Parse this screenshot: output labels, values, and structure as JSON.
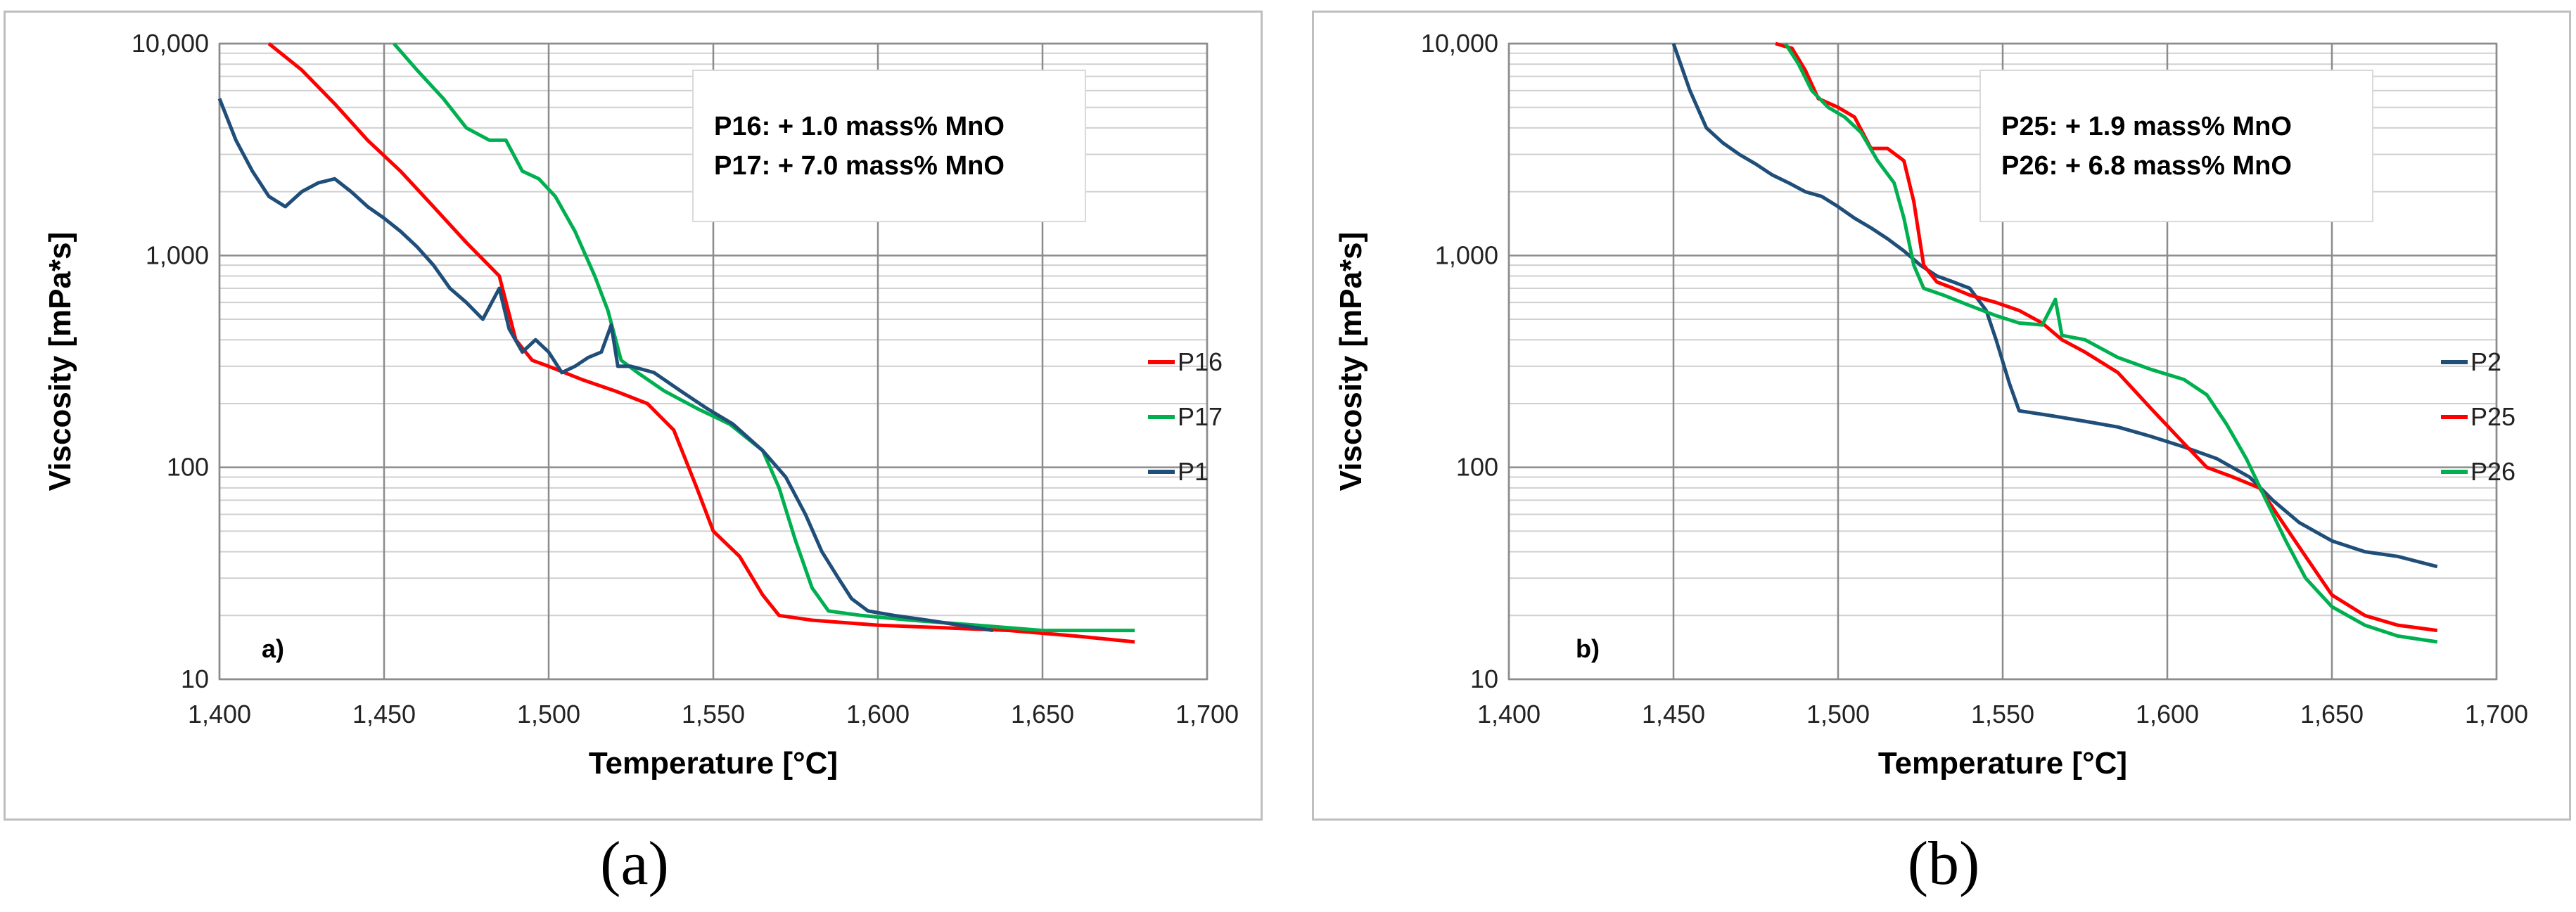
{
  "chart_data": [
    {
      "type": "line",
      "panel_label": "a)",
      "caption": "(a)",
      "xlabel": "Temperature [°C]",
      "ylabel": "Viscosity [mPa*s]",
      "xlim": [
        1400,
        1700
      ],
      "ylim": [
        10,
        10000
      ],
      "yscale": "log",
      "grid": true,
      "x_ticks": [
        1400,
        1450,
        1500,
        1550,
        1600,
        1650,
        1700
      ],
      "x_tick_labels": [
        "1,400",
        "1,450",
        "1,500",
        "1,550",
        "1,600",
        "1,650",
        "1,700"
      ],
      "y_ticks": [
        10,
        100,
        1000,
        10000
      ],
      "y_tick_labels": [
        "10",
        "100",
        "1,000",
        "10,000"
      ],
      "annotation": [
        "P16: + 1.0 mass% MnO",
        "P17: + 7.0 mass% MnO"
      ],
      "legend_position": "right",
      "series": [
        {
          "name": "P16",
          "color": "#ff0000",
          "points": [
            [
              1415,
              10000
            ],
            [
              1425,
              7500
            ],
            [
              1435,
              5200
            ],
            [
              1445,
              3500
            ],
            [
              1455,
              2500
            ],
            [
              1465,
              1700
            ],
            [
              1475,
              1150
            ],
            [
              1485,
              800
            ],
            [
              1490,
              400
            ],
            [
              1495,
              320
            ],
            [
              1500,
              300
            ],
            [
              1510,
              260
            ],
            [
              1520,
              230
            ],
            [
              1530,
              200
            ],
            [
              1538,
              150
            ],
            [
              1545,
              80
            ],
            [
              1550,
              50
            ],
            [
              1558,
              38
            ],
            [
              1565,
              25
            ],
            [
              1570,
              20
            ],
            [
              1580,
              19
            ],
            [
              1600,
              18
            ],
            [
              1620,
              17.5
            ],
            [
              1640,
              17
            ],
            [
              1660,
              16
            ],
            [
              1678,
              15
            ]
          ]
        },
        {
          "name": "P17",
          "color": "#00b050",
          "points": [
            [
              1453,
              10000
            ],
            [
              1460,
              7500
            ],
            [
              1468,
              5500
            ],
            [
              1475,
              4000
            ],
            [
              1482,
              3500
            ],
            [
              1487,
              3500
            ],
            [
              1492,
              2500
            ],
            [
              1497,
              2300
            ],
            [
              1502,
              1900
            ],
            [
              1508,
              1300
            ],
            [
              1514,
              800
            ],
            [
              1518,
              550
            ],
            [
              1522,
              320
            ],
            [
              1527,
              280
            ],
            [
              1535,
              230
            ],
            [
              1545,
              190
            ],
            [
              1555,
              160
            ],
            [
              1565,
              120
            ],
            [
              1570,
              80
            ],
            [
              1575,
              45
            ],
            [
              1580,
              27
            ],
            [
              1585,
              21
            ],
            [
              1595,
              20
            ],
            [
              1610,
              19
            ],
            [
              1630,
              18
            ],
            [
              1650,
              17
            ],
            [
              1678,
              17
            ]
          ]
        },
        {
          "name": "P1",
          "color": "#1f4e79",
          "points": [
            [
              1400,
              5500
            ],
            [
              1405,
              3500
            ],
            [
              1410,
              2500
            ],
            [
              1415,
              1900
            ],
            [
              1420,
              1700
            ],
            [
              1425,
              2000
            ],
            [
              1430,
              2200
            ],
            [
              1435,
              2300
            ],
            [
              1440,
              2000
            ],
            [
              1445,
              1700
            ],
            [
              1450,
              1500
            ],
            [
              1455,
              1300
            ],
            [
              1460,
              1100
            ],
            [
              1465,
              900
            ],
            [
              1470,
              700
            ],
            [
              1475,
              600
            ],
            [
              1480,
              500
            ],
            [
              1485,
              700
            ],
            [
              1488,
              450
            ],
            [
              1492,
              350
            ],
            [
              1496,
              400
            ],
            [
              1500,
              350
            ],
            [
              1504,
              280
            ],
            [
              1508,
              300
            ],
            [
              1512,
              330
            ],
            [
              1516,
              350
            ],
            [
              1519,
              470
            ],
            [
              1521,
              300
            ],
            [
              1525,
              300
            ],
            [
              1532,
              280
            ],
            [
              1540,
              230
            ],
            [
              1548,
              190
            ],
            [
              1556,
              160
            ],
            [
              1565,
              120
            ],
            [
              1572,
              90
            ],
            [
              1578,
              60
            ],
            [
              1583,
              40
            ],
            [
              1588,
              30
            ],
            [
              1592,
              24
            ],
            [
              1597,
              21
            ],
            [
              1605,
              20
            ],
            [
              1615,
              19
            ],
            [
              1625,
              18
            ],
            [
              1635,
              17
            ]
          ]
        }
      ]
    },
    {
      "type": "line",
      "panel_label": "b)",
      "caption": "(b)",
      "xlabel": "Temperature [°C]",
      "ylabel": "Viscosity [mPa*s]",
      "xlim": [
        1400,
        1700
      ],
      "ylim": [
        10,
        10000
      ],
      "yscale": "log",
      "grid": true,
      "x_ticks": [
        1400,
        1450,
        1500,
        1550,
        1600,
        1650,
        1700
      ],
      "x_tick_labels": [
        "1,400",
        "1,450",
        "1,500",
        "1,550",
        "1,600",
        "1,650",
        "1,700"
      ],
      "y_ticks": [
        10,
        100,
        1000,
        10000
      ],
      "y_tick_labels": [
        "10",
        "100",
        "1,000",
        "10,000"
      ],
      "annotation": [
        "P25: + 1.9 mass% MnO",
        "P26: + 6.8 mass% MnO"
      ],
      "legend_position": "right",
      "series": [
        {
          "name": "P2",
          "color": "#1f4e79",
          "points": [
            [
              1450,
              10000
            ],
            [
              1455,
              6000
            ],
            [
              1460,
              4000
            ],
            [
              1465,
              3400
            ],
            [
              1470,
              3000
            ],
            [
              1475,
              2700
            ],
            [
              1480,
              2400
            ],
            [
              1485,
              2200
            ],
            [
              1490,
              2000
            ],
            [
              1495,
              1900
            ],
            [
              1500,
              1700
            ],
            [
              1505,
              1500
            ],
            [
              1510,
              1350
            ],
            [
              1515,
              1200
            ],
            [
              1520,
              1050
            ],
            [
              1525,
              900
            ],
            [
              1530,
              800
            ],
            [
              1535,
              750
            ],
            [
              1540,
              700
            ],
            [
              1545,
              550
            ],
            [
              1548,
              400
            ],
            [
              1552,
              250
            ],
            [
              1555,
              185
            ],
            [
              1565,
              175
            ],
            [
              1575,
              165
            ],
            [
              1585,
              155
            ],
            [
              1595,
              140
            ],
            [
              1605,
              125
            ],
            [
              1615,
              110
            ],
            [
              1625,
              90
            ],
            [
              1632,
              70
            ],
            [
              1640,
              55
            ],
            [
              1650,
              45
            ],
            [
              1660,
              40
            ],
            [
              1670,
              38
            ],
            [
              1682,
              34
            ]
          ]
        },
        {
          "name": "P25",
          "color": "#ff0000",
          "points": [
            [
              1481,
              10000
            ],
            [
              1486,
              9500
            ],
            [
              1490,
              7500
            ],
            [
              1494,
              5500
            ],
            [
              1500,
              5000
            ],
            [
              1505,
              4500
            ],
            [
              1510,
              3200
            ],
            [
              1515,
              3200
            ],
            [
              1520,
              2800
            ],
            [
              1523,
              1800
            ],
            [
              1526,
              900
            ],
            [
              1530,
              750
            ],
            [
              1535,
              700
            ],
            [
              1540,
              650
            ],
            [
              1548,
              600
            ],
            [
              1555,
              550
            ],
            [
              1562,
              480
            ],
            [
              1568,
              400
            ],
            [
              1575,
              350
            ],
            [
              1585,
              280
            ],
            [
              1595,
              190
            ],
            [
              1605,
              130
            ],
            [
              1612,
              100
            ],
            [
              1620,
              90
            ],
            [
              1628,
              80
            ],
            [
              1635,
              55
            ],
            [
              1642,
              38
            ],
            [
              1650,
              25
            ],
            [
              1660,
              20
            ],
            [
              1670,
              18
            ],
            [
              1682,
              17
            ]
          ]
        },
        {
          "name": "P26",
          "color": "#00b050",
          "points": [
            [
              1484,
              10000
            ],
            [
              1488,
              8000
            ],
            [
              1492,
              6000
            ],
            [
              1497,
              5000
            ],
            [
              1502,
              4500
            ],
            [
              1507,
              3800
            ],
            [
              1512,
              2800
            ],
            [
              1517,
              2200
            ],
            [
              1520,
              1500
            ],
            [
              1523,
              900
            ],
            [
              1526,
              700
            ],
            [
              1532,
              650
            ],
            [
              1540,
              580
            ],
            [
              1548,
              520
            ],
            [
              1555,
              480
            ],
            [
              1562,
              470
            ],
            [
              1566,
              620
            ],
            [
              1568,
              420
            ],
            [
              1575,
              400
            ],
            [
              1585,
              330
            ],
            [
              1595,
              290
            ],
            [
              1605,
              260
            ],
            [
              1612,
              220
            ],
            [
              1618,
              160
            ],
            [
              1624,
              110
            ],
            [
              1630,
              70
            ],
            [
              1636,
              45
            ],
            [
              1642,
              30
            ],
            [
              1650,
              22
            ],
            [
              1660,
              18
            ],
            [
              1670,
              16
            ],
            [
              1682,
              15
            ]
          ]
        }
      ]
    }
  ]
}
